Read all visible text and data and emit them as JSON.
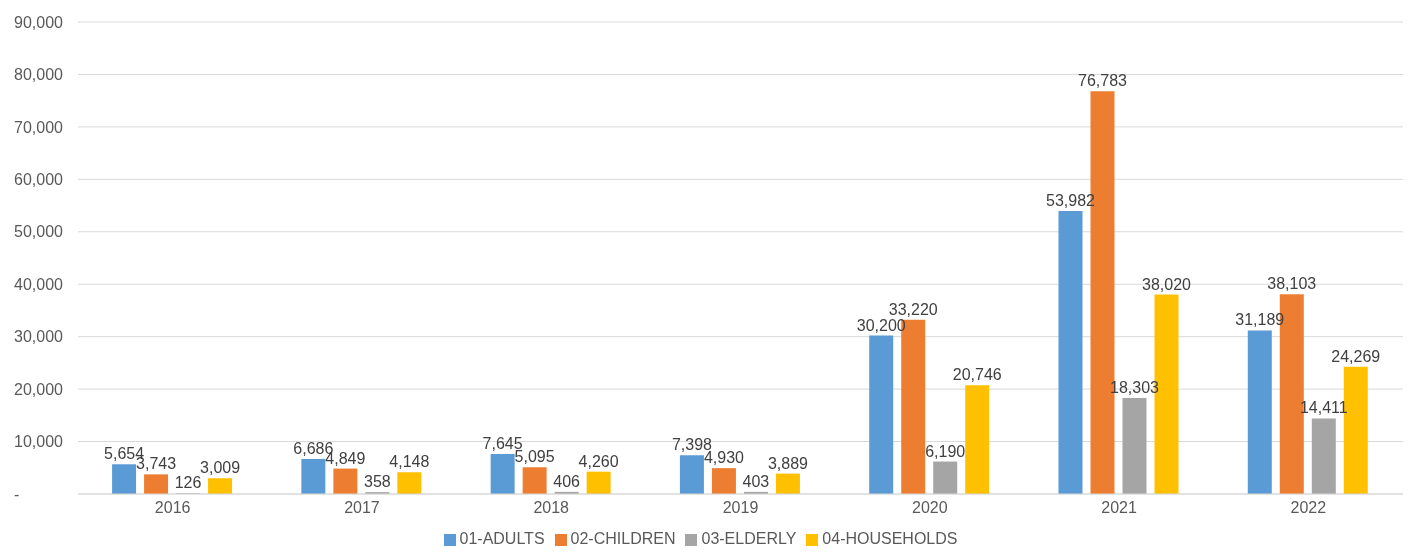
{
  "chart_data": {
    "type": "bar",
    "categories": [
      "2016",
      "2017",
      "2018",
      "2019",
      "2020",
      "2021",
      "2022"
    ],
    "series": [
      {
        "name": "01-ADULTS",
        "color": "#5b9bd5",
        "values": [
          5654,
          6686,
          7645,
          7398,
          30200,
          53982,
          31189
        ],
        "value_labels": [
          "5,654",
          "6,686",
          "7,645",
          "7,398",
          "30,200",
          "53,982",
          "31,189"
        ]
      },
      {
        "name": "02-CHILDREN",
        "color": "#ed7d31",
        "values": [
          3743,
          4849,
          5095,
          4930,
          33220,
          76783,
          38103
        ],
        "value_labels": [
          "3,743",
          "4,849",
          "5,095",
          "4,930",
          "33,220",
          "76,783",
          "38,103"
        ]
      },
      {
        "name": "03-ELDERLY",
        "color": "#a5a5a5",
        "values": [
          126,
          358,
          406,
          403,
          6190,
          18303,
          14411
        ],
        "value_labels": [
          "126",
          "358",
          "406",
          "403",
          "6,190",
          "18,303",
          "14,411"
        ]
      },
      {
        "name": "04-HOUSEHOLDS",
        "color": "#ffc000",
        "values": [
          3009,
          4148,
          4260,
          3889,
          20746,
          38020,
          24269
        ],
        "value_labels": [
          "3,009",
          "4,148",
          "4,260",
          "3,889",
          "20,746",
          "38,020",
          "24,269"
        ]
      }
    ],
    "ylim": [
      0,
      90000
    ],
    "yticks": [
      {
        "value": 0,
        "label": "-"
      },
      {
        "value": 10000,
        "label": "10,000"
      },
      {
        "value": 20000,
        "label": "20,000"
      },
      {
        "value": 30000,
        "label": "30,000"
      },
      {
        "value": 40000,
        "label": "40,000"
      },
      {
        "value": 50000,
        "label": "50,000"
      },
      {
        "value": 60000,
        "label": "60,000"
      },
      {
        "value": 70000,
        "label": "70,000"
      },
      {
        "value": 80000,
        "label": "80,000"
      },
      {
        "value": 90000,
        "label": "90,000"
      }
    ],
    "grid": "y",
    "legend": "bottom"
  }
}
